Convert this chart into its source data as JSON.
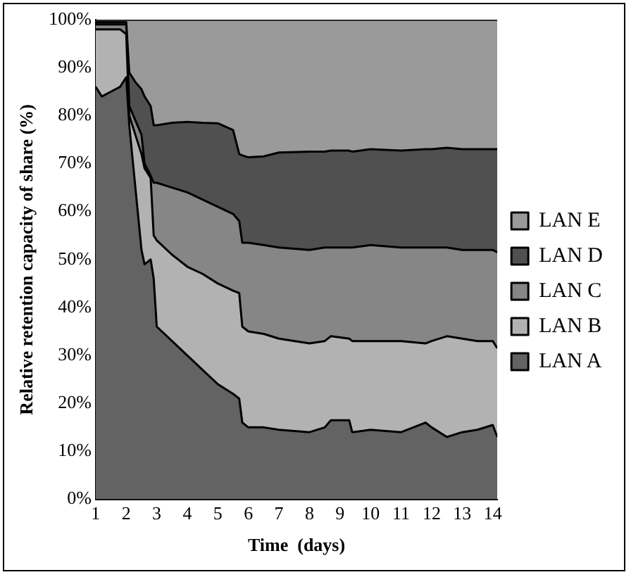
{
  "chart_data": {
    "type": "area",
    "stacked": true,
    "xlabel": "Time  (days)",
    "ylabel": "Relative retention capacity of share (%)",
    "x": [
      1,
      1.2,
      1.5,
      1.8,
      2.0,
      2.1,
      2.3,
      2.5,
      2.6,
      2.8,
      2.9,
      3.0,
      3.5,
      4,
      4.5,
      5,
      5.5,
      5.7,
      5.8,
      6,
      6.5,
      7,
      8,
      8.5,
      8.7,
      9.3,
      9.4,
      10,
      11,
      11.8,
      12,
      12.5,
      13,
      13.5,
      14,
      14.15
    ],
    "series": [
      {
        "name": "LAN A",
        "color": "#636363",
        "values": [
          86,
          84,
          85,
          86,
          88,
          78,
          65,
          52,
          49,
          50,
          46,
          36,
          33,
          30,
          27,
          24,
          22,
          21,
          16,
          15,
          15,
          14.5,
          14,
          15,
          16.5,
          16.5,
          14,
          14.5,
          14,
          16,
          15,
          13,
          14,
          14.5,
          15.5,
          13
        ]
      },
      {
        "name": "LAN B",
        "color": "#b2b2b2",
        "values": [
          12,
          14,
          13,
          12,
          9,
          2,
          11,
          20,
          20,
          17,
          9,
          18,
          18,
          18.5,
          20,
          21,
          21.5,
          22,
          20,
          20,
          19.5,
          19,
          18.5,
          18,
          17.5,
          17,
          19,
          18.5,
          19,
          16.5,
          18,
          21,
          19.5,
          18.5,
          17.5,
          18.5
        ]
      },
      {
        "name": "LAN C",
        "color": "#868686",
        "values": [
          1,
          1,
          1,
          1,
          2,
          2,
          3,
          4,
          1,
          0.5,
          11,
          12,
          14,
          15.5,
          15.5,
          16,
          16,
          15,
          17.5,
          18.5,
          18.5,
          19,
          19.5,
          19.5,
          18.5,
          19,
          19.5,
          20,
          19.5,
          20,
          19.5,
          18.5,
          18.5,
          19,
          19,
          20
        ]
      },
      {
        "name": "LAN D",
        "color": "#505050",
        "values": [
          0.5,
          0.5,
          0.5,
          0.5,
          0.5,
          7,
          8,
          9.5,
          14,
          14.5,
          12,
          12,
          13.5,
          14.7,
          16,
          17.4,
          17.5,
          14,
          18.2,
          17.8,
          18.5,
          19.8,
          20.5,
          20,
          20.2,
          20.2,
          20,
          20,
          20.2,
          20.5,
          20.5,
          20.8,
          21,
          21,
          21,
          21.5
        ]
      },
      {
        "name": "LAN E",
        "color": "#9a9a9a",
        "values": [
          0.5,
          0.5,
          0.5,
          0.5,
          0.5,
          11,
          13,
          14.5,
          16,
          18,
          22,
          22,
          21.5,
          21.3,
          21.5,
          21.6,
          23,
          28,
          28.3,
          28.7,
          28.5,
          27.7,
          27.5,
          27.5,
          27.3,
          27.3,
          27.5,
          27,
          27.3,
          27,
          27,
          26.7,
          27,
          27,
          27,
          27
        ]
      }
    ],
    "xlim": [
      1,
      14.15
    ],
    "xticks": [
      1,
      2,
      3,
      4,
      5,
      6,
      7,
      8,
      9,
      10,
      11,
      12,
      13,
      14
    ],
    "ylim": [
      0,
      100
    ],
    "yticks": [
      {
        "value": 0,
        "label": "0%"
      },
      {
        "value": 10,
        "label": "10%"
      },
      {
        "value": 20,
        "label": "20%"
      },
      {
        "value": 30,
        "label": "30%"
      },
      {
        "value": 40,
        "label": "40%"
      },
      {
        "value": 50,
        "label": "50%"
      },
      {
        "value": 60,
        "label": "60%"
      },
      {
        "value": 70,
        "label": "70%"
      },
      {
        "value": 80,
        "label": "80%"
      },
      {
        "value": 90,
        "label": "90%"
      },
      {
        "value": 100,
        "label": "100%"
      }
    ],
    "legend": "right"
  }
}
